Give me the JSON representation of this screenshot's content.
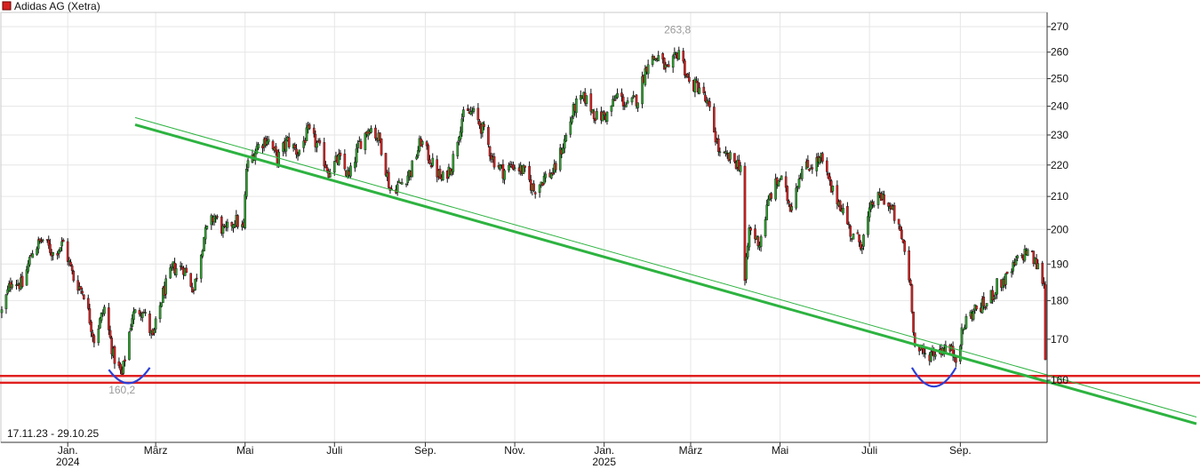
{
  "chart_data": {
    "type": "candlestick",
    "title": "Adidas AG (Xetra)",
    "date_range_label": "17.11.23 - 29.10.25",
    "y_axis": {
      "side": "right",
      "ticks": [
        "160",
        "170",
        "180",
        "190",
        "200",
        "210",
        "220",
        "230",
        "240",
        "250",
        "260",
        "270"
      ],
      "ylim": [
        155,
        272
      ],
      "scale": "log"
    },
    "x_axis": {
      "ticks": [
        {
          "label": "Jan.",
          "year": "2024",
          "date": "2024-01-01"
        },
        {
          "label": "März",
          "year": "",
          "date": "2024-03-01"
        },
        {
          "label": "Mai",
          "year": "",
          "date": "2024-05-01"
        },
        {
          "label": "Juli",
          "year": "",
          "date": "2024-07-01"
        },
        {
          "label": "Sep.",
          "year": "",
          "date": "2024-09-01"
        },
        {
          "label": "Nov.",
          "year": "",
          "date": "2024-11-01"
        },
        {
          "label": "Jan.",
          "year": "2025",
          "date": "2025-01-01"
        },
        {
          "label": "März",
          "year": "",
          "date": "2025-03-01"
        },
        {
          "label": "Mai",
          "year": "",
          "date": "2025-05-01"
        },
        {
          "label": "Juli",
          "year": "",
          "date": "2025-07-01"
        },
        {
          "label": "Sep.",
          "year": "",
          "date": "2025-09-01"
        }
      ],
      "start": "2023-11-17",
      "end": "2025-10-29"
    },
    "grid": true,
    "annotations": [
      {
        "text": "263,8",
        "date": "2025-02-20",
        "value": 263.8,
        "kind": "high"
      },
      {
        "text": "160,2",
        "date": "2024-02-07",
        "value": 160.2,
        "kind": "low"
      }
    ],
    "support_lines": [
      {
        "value": 161.0,
        "color": "#e02020"
      },
      {
        "value": 159.4,
        "color": "#e02020"
      }
    ],
    "trend_lines": [
      {
        "from": {
          "date": "2024-02-16",
          "value": 233.5
        },
        "to": {
          "date": "2025-10-29",
          "value": 150.0
        },
        "color": "#2db340",
        "weight": "thick"
      },
      {
        "from": {
          "date": "2024-02-16",
          "value": 236.0
        },
        "to": {
          "date": "2025-10-29",
          "value": 151.5
        },
        "color": "#2db340",
        "weight": "thin"
      }
    ],
    "arcs": [
      {
        "from": {
          "date": "2024-01-29",
          "value": 162.5
        },
        "to": {
          "date": "2024-02-26",
          "value": 163.0
        },
        "bottom": 159.3,
        "color": "#2b3fd6"
      },
      {
        "from": {
          "date": "2025-07-30",
          "value": 163.0
        },
        "to": {
          "date": "2025-08-29",
          "value": 163.0
        },
        "bottom": 158.5,
        "color": "#2b3fd6"
      }
    ],
    "colors": {
      "up": "#2ea02e",
      "down": "#d62020",
      "wick": "#111111",
      "grid": "#e6e6e6"
    },
    "anchors": [
      [
        "2023-11-17",
        177
      ],
      [
        "2023-11-24",
        186
      ],
      [
        "2023-12-01",
        184
      ],
      [
        "2023-12-08",
        194
      ],
      [
        "2023-12-15",
        197
      ],
      [
        "2023-12-22",
        193
      ],
      [
        "2023-12-29",
        196
      ],
      [
        "2024-01-05",
        186
      ],
      [
        "2024-01-12",
        182
      ],
      [
        "2024-01-19",
        170
      ],
      [
        "2024-01-26",
        178
      ],
      [
        "2024-02-01",
        166
      ],
      [
        "2024-02-07",
        161
      ],
      [
        "2024-02-14",
        176
      ],
      [
        "2024-02-21",
        178
      ],
      [
        "2024-02-28",
        170
      ],
      [
        "2024-03-06",
        182
      ],
      [
        "2024-03-13",
        189
      ],
      [
        "2024-03-20",
        189
      ],
      [
        "2024-03-27",
        183
      ],
      [
        "2024-04-03",
        198
      ],
      [
        "2024-04-10",
        204
      ],
      [
        "2024-04-17",
        199
      ],
      [
        "2024-04-24",
        203
      ],
      [
        "2024-04-30",
        200
      ],
      [
        "2024-05-02",
        219
      ],
      [
        "2024-05-09",
        226
      ],
      [
        "2024-05-16",
        229
      ],
      [
        "2024-05-23",
        222
      ],
      [
        "2024-05-30",
        228
      ],
      [
        "2024-06-06",
        224
      ],
      [
        "2024-06-13",
        231
      ],
      [
        "2024-06-20",
        226
      ],
      [
        "2024-06-27",
        218
      ],
      [
        "2024-07-04",
        222
      ],
      [
        "2024-07-11",
        216
      ],
      [
        "2024-07-18",
        227
      ],
      [
        "2024-07-25",
        233
      ],
      [
        "2024-08-01",
        228
      ],
      [
        "2024-08-08",
        212
      ],
      [
        "2024-08-15",
        214
      ],
      [
        "2024-08-22",
        218
      ],
      [
        "2024-08-29",
        228
      ],
      [
        "2024-09-05",
        221
      ],
      [
        "2024-09-12",
        215
      ],
      [
        "2024-09-19",
        220
      ],
      [
        "2024-09-26",
        236
      ],
      [
        "2024-10-03",
        238
      ],
      [
        "2024-10-10",
        232
      ],
      [
        "2024-10-17",
        222
      ],
      [
        "2024-10-24",
        218
      ],
      [
        "2024-10-31",
        220
      ],
      [
        "2024-11-07",
        218
      ],
      [
        "2024-11-14",
        212
      ],
      [
        "2024-11-21",
        216
      ],
      [
        "2024-11-28",
        218
      ],
      [
        "2024-12-05",
        228
      ],
      [
        "2024-12-12",
        240
      ],
      [
        "2024-12-19",
        243
      ],
      [
        "2024-12-27",
        236
      ],
      [
        "2025-01-03",
        237
      ],
      [
        "2025-01-10",
        244
      ],
      [
        "2025-01-17",
        240
      ],
      [
        "2025-01-24",
        243
      ],
      [
        "2025-01-31",
        257
      ],
      [
        "2025-02-07",
        258
      ],
      [
        "2025-02-14",
        252
      ],
      [
        "2025-02-21",
        261
      ],
      [
        "2025-02-28",
        248
      ],
      [
        "2025-03-07",
        247
      ],
      [
        "2025-03-14",
        238
      ],
      [
        "2025-03-21",
        223
      ],
      [
        "2025-03-28",
        222
      ],
      [
        "2025-04-04",
        220
      ],
      [
        "2025-04-07",
        185
      ],
      [
        "2025-04-10",
        200
      ],
      [
        "2025-04-17",
        196
      ],
      [
        "2025-04-24",
        210
      ],
      [
        "2025-05-01",
        216
      ],
      [
        "2025-05-08",
        207
      ],
      [
        "2025-05-15",
        218
      ],
      [
        "2025-05-22",
        220
      ],
      [
        "2025-05-29",
        222
      ],
      [
        "2025-06-05",
        212
      ],
      [
        "2025-06-12",
        207
      ],
      [
        "2025-06-19",
        198
      ],
      [
        "2025-06-26",
        196
      ],
      [
        "2025-07-03",
        208
      ],
      [
        "2025-07-10",
        210
      ],
      [
        "2025-07-17",
        205
      ],
      [
        "2025-07-24",
        196
      ],
      [
        "2025-07-29",
        184
      ],
      [
        "2025-08-01",
        168
      ],
      [
        "2025-08-08",
        166
      ],
      [
        "2025-08-15",
        167
      ],
      [
        "2025-08-22",
        168
      ],
      [
        "2025-08-29",
        166
      ],
      [
        "2025-09-05",
        175
      ],
      [
        "2025-09-12",
        178
      ],
      [
        "2025-09-19",
        179
      ],
      [
        "2025-09-26",
        184
      ],
      [
        "2025-10-03",
        186
      ],
      [
        "2025-10-10",
        191
      ],
      [
        "2025-10-17",
        194
      ],
      [
        "2025-10-24",
        189
      ],
      [
        "2025-10-28",
        185
      ],
      [
        "2025-10-29",
        165
      ]
    ]
  }
}
